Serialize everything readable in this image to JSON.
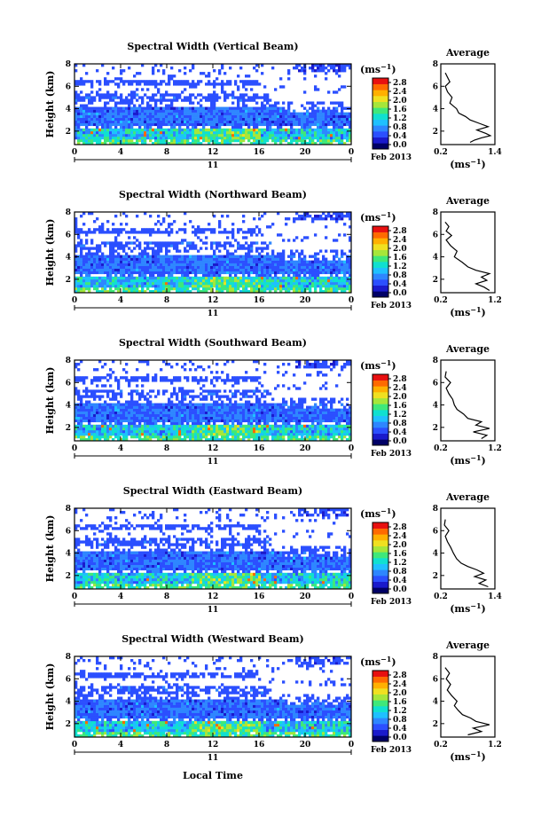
{
  "figure": {
    "xlabel": "Local Time"
  },
  "colorbar_unit_base": "(ms",
  "colorbar_unit_exp": "−1",
  "avg_title": "Average",
  "avg_unit_base": "(ms",
  "avg_unit_exp": "−1",
  "colorscale": [
    "#000066",
    "#1a1acc",
    "#2b4fff",
    "#2e86ff",
    "#1fc0ff",
    "#10e0d0",
    "#3fe87a",
    "#a6e63a",
    "#f0e020",
    "#ffb000",
    "#ff6a00",
    "#e81010"
  ],
  "chart_data": [
    {
      "type": "heatmap",
      "title": "Spectral Width (Vertical Beam)",
      "ylabel": "Height (km)",
      "xticks": [
        "0",
        "4",
        "8",
        "12",
        "16",
        "20",
        "0"
      ],
      "xrange": [
        0,
        24
      ],
      "yticks": [
        "2",
        "4",
        "6",
        "8"
      ],
      "yrange": [
        0.8,
        8
      ],
      "day_label": "11",
      "date_label": "Feb 2013",
      "colorbar_ticks": [
        "0.0",
        "0.4",
        "0.8",
        "1.2",
        "1.6",
        "2.0",
        "2.4",
        "2.8"
      ],
      "colorbar_range": [
        0.0,
        2.8
      ],
      "avg_xticks": [
        "0.2",
        "1.4"
      ],
      "avg_xrange": [
        0.2,
        1.4
      ],
      "avg_profile": [
        [
          0.85,
          1.0
        ],
        [
          0.95,
          1.2
        ],
        [
          1.1,
          1.4
        ],
        [
          1.3,
          1.6
        ],
        [
          1.2,
          1.8
        ],
        [
          1.0,
          2.1
        ],
        [
          1.25,
          2.4
        ],
        [
          1.05,
          2.7
        ],
        [
          0.85,
          3.0
        ],
        [
          0.75,
          3.3
        ],
        [
          0.6,
          3.6
        ],
        [
          0.55,
          4.0
        ],
        [
          0.4,
          4.5
        ],
        [
          0.45,
          5.0
        ],
        [
          0.35,
          5.5
        ],
        [
          0.3,
          6.0
        ],
        [
          0.4,
          6.4
        ],
        [
          0.35,
          6.8
        ],
        [
          0.3,
          7.2
        ]
      ]
    },
    {
      "type": "heatmap",
      "title": "Spectral Width (Northward Beam)",
      "ylabel": "Height (km)",
      "xticks": [
        "0",
        "4",
        "8",
        "12",
        "16",
        "20",
        "0"
      ],
      "xrange": [
        0,
        24
      ],
      "yticks": [
        "2",
        "4",
        "6",
        "8"
      ],
      "yrange": [
        0.8,
        8
      ],
      "day_label": "11",
      "date_label": "Feb 2013",
      "colorbar_ticks": [
        "0.0",
        "0.4",
        "0.8",
        "1.2",
        "1.6",
        "2.0",
        "2.4",
        "2.8"
      ],
      "colorbar_range": [
        0.0,
        2.8
      ],
      "avg_xticks": [
        "0.2",
        "1.2"
      ],
      "avg_xrange": [
        0.2,
        1.2
      ],
      "avg_profile": [
        [
          1.1,
          1.0
        ],
        [
          1.0,
          1.3
        ],
        [
          0.85,
          1.6
        ],
        [
          1.05,
          1.9
        ],
        [
          0.95,
          2.2
        ],
        [
          1.1,
          2.5
        ],
        [
          0.85,
          2.8
        ],
        [
          0.7,
          3.1
        ],
        [
          0.6,
          3.5
        ],
        [
          0.45,
          4.0
        ],
        [
          0.5,
          4.5
        ],
        [
          0.38,
          5.0
        ],
        [
          0.3,
          5.5
        ],
        [
          0.4,
          5.9
        ],
        [
          0.3,
          6.3
        ],
        [
          0.35,
          6.7
        ],
        [
          0.28,
          7.1
        ]
      ]
    },
    {
      "type": "heatmap",
      "title": "Spectral Width (Southward Beam)",
      "ylabel": "Height (km)",
      "xticks": [
        "0",
        "4",
        "8",
        "12",
        "16",
        "20",
        "0"
      ],
      "xrange": [
        0,
        24
      ],
      "yticks": [
        "2",
        "4",
        "6",
        "8"
      ],
      "yrange": [
        0.8,
        8
      ],
      "day_label": "11",
      "date_label": "Feb 2013",
      "colorbar_ticks": [
        "0.0",
        "0.4",
        "0.8",
        "1.2",
        "1.6",
        "2.0",
        "2.4",
        "2.8"
      ],
      "colorbar_range": [
        0.0,
        2.8
      ],
      "avg_xticks": [
        "0.2",
        "1.2"
      ],
      "avg_xrange": [
        0.2,
        1.2
      ],
      "avg_profile": [
        [
          0.95,
          1.0
        ],
        [
          1.05,
          1.3
        ],
        [
          0.8,
          1.6
        ],
        [
          1.1,
          1.9
        ],
        [
          0.85,
          2.2
        ],
        [
          0.95,
          2.5
        ],
        [
          0.7,
          2.8
        ],
        [
          0.62,
          3.2
        ],
        [
          0.5,
          3.6
        ],
        [
          0.45,
          4.0
        ],
        [
          0.42,
          4.5
        ],
        [
          0.35,
          5.0
        ],
        [
          0.3,
          5.5
        ],
        [
          0.38,
          6.0
        ],
        [
          0.28,
          6.5
        ],
        [
          0.3,
          7.0
        ]
      ]
    },
    {
      "type": "heatmap",
      "title": "Spectral Width (Eastward Beam)",
      "ylabel": "Height (km)",
      "xticks": [
        "0",
        "4",
        "8",
        "12",
        "16",
        "20",
        "0"
      ],
      "xrange": [
        0,
        24
      ],
      "yticks": [
        "2",
        "4",
        "6",
        "8"
      ],
      "yrange": [
        0.8,
        8
      ],
      "day_label": "11",
      "date_label": "Feb 2013",
      "colorbar_ticks": [
        "0.0",
        "0.4",
        "0.8",
        "1.2",
        "1.6",
        "2.0",
        "2.4",
        "2.8"
      ],
      "colorbar_range": [
        0.0,
        2.8
      ],
      "avg_xticks": [
        "0.2",
        "1.4"
      ],
      "avg_xrange": [
        0.2,
        1.4
      ],
      "avg_profile": [
        [
          1.25,
          1.0
        ],
        [
          1.05,
          1.3
        ],
        [
          1.2,
          1.6
        ],
        [
          0.95,
          1.9
        ],
        [
          1.15,
          2.2
        ],
        [
          1.0,
          2.5
        ],
        [
          0.8,
          2.8
        ],
        [
          0.65,
          3.1
        ],
        [
          0.55,
          3.5
        ],
        [
          0.48,
          4.0
        ],
        [
          0.42,
          4.5
        ],
        [
          0.35,
          5.0
        ],
        [
          0.3,
          5.5
        ],
        [
          0.38,
          6.0
        ],
        [
          0.28,
          6.5
        ],
        [
          0.3,
          7.0
        ]
      ]
    },
    {
      "type": "heatmap",
      "title": "Spectral Width (Westward Beam)",
      "ylabel": "Height (km)",
      "xticks": [
        "0",
        "4",
        "8",
        "12",
        "16",
        "20",
        "0"
      ],
      "xrange": [
        0,
        24
      ],
      "yticks": [
        "2",
        "4",
        "6",
        "8"
      ],
      "yrange": [
        0.8,
        8
      ],
      "day_label": "11",
      "date_label": "Feb 2013",
      "colorbar_ticks": [
        "0.0",
        "0.4",
        "0.8",
        "1.2",
        "1.6",
        "2.0",
        "2.4",
        "2.8"
      ],
      "colorbar_range": [
        0.0,
        2.8
      ],
      "avg_xticks": [
        "0.2",
        "1.2"
      ],
      "avg_xrange": [
        0.2,
        1.2
      ],
      "avg_profile": [
        [
          0.7,
          1.0
        ],
        [
          0.95,
          1.3
        ],
        [
          0.8,
          1.6
        ],
        [
          1.1,
          1.9
        ],
        [
          0.85,
          2.2
        ],
        [
          0.75,
          2.5
        ],
        [
          0.6,
          2.8
        ],
        [
          0.52,
          3.2
        ],
        [
          0.45,
          3.6
        ],
        [
          0.5,
          4.0
        ],
        [
          0.4,
          4.5
        ],
        [
          0.32,
          5.0
        ],
        [
          0.38,
          5.5
        ],
        [
          0.3,
          6.0
        ],
        [
          0.36,
          6.5
        ],
        [
          0.28,
          7.0
        ]
      ]
    }
  ]
}
